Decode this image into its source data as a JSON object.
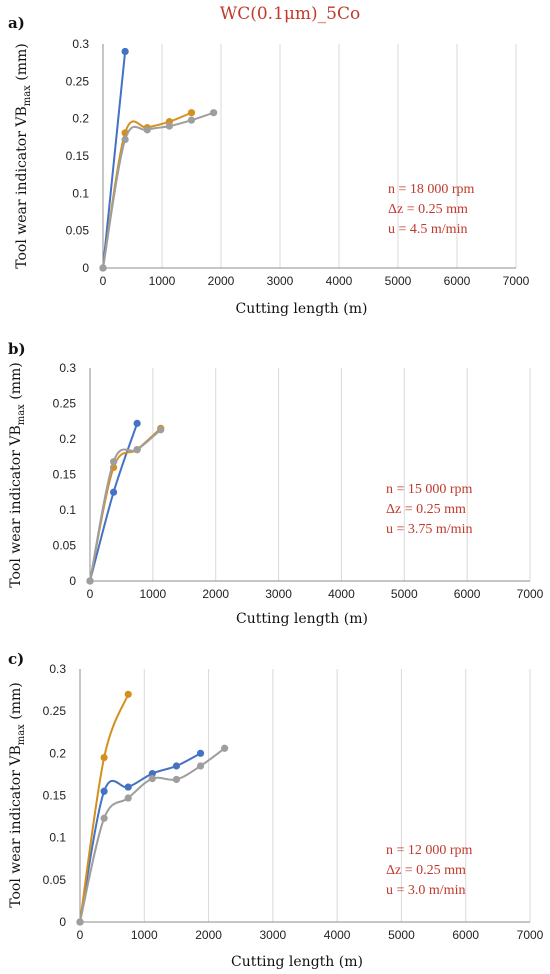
{
  "title": "WC(0.1μm)_5Co",
  "colors": {
    "blue": "#4472c4",
    "orange": "#d4901e",
    "gray": "#9e9e9e",
    "annotation": "#c0392b",
    "grid": "#d9d9d9",
    "axis": "#8c8c8c"
  },
  "chart_data": [
    {
      "type": "line",
      "panel": "a)",
      "xlabel": "Cutting length (m)",
      "ylabel": "Tool wear indicator VBmax (mm)",
      "ylabel_main": "Tool wear indicator VB",
      "ylabel_sub": "max",
      "ylabel_unit": "(mm)",
      "xlim": [
        0,
        7000
      ],
      "ylim": [
        0,
        0.3
      ],
      "xticks": [
        0,
        1000,
        2000,
        3000,
        4000,
        5000,
        6000,
        7000
      ],
      "yticks": [
        0,
        0.05,
        0.1,
        0.15,
        0.2,
        0.25,
        0.3
      ],
      "annotation": [
        "n = 18 000 rpm",
        "Δz = 0.25 mm",
        "u = 4.5 m/min"
      ],
      "series": [
        {
          "color": "blue",
          "x": [
            0,
            375
          ],
          "y": [
            0,
            0.29
          ]
        },
        {
          "color": "orange",
          "x": [
            0,
            375,
            750,
            1125,
            1500
          ],
          "y": [
            0,
            0.181,
            0.188,
            0.196,
            0.208
          ]
        },
        {
          "color": "gray",
          "x": [
            0,
            375,
            750,
            1125,
            1500,
            1875
          ],
          "y": [
            0,
            0.172,
            0.185,
            0.19,
            0.198,
            0.208
          ]
        }
      ]
    },
    {
      "type": "line",
      "panel": "b)",
      "xlabel": "Cutting length (m)",
      "ylabel": "Tool wear indicator VBmax (mm)",
      "ylabel_main": "Tool wear indicator VB",
      "ylabel_sub": "max",
      "ylabel_unit": "(mm)",
      "xlim": [
        0,
        7000
      ],
      "ylim": [
        0,
        0.3
      ],
      "xticks": [
        0,
        1000,
        2000,
        3000,
        4000,
        5000,
        6000,
        7000
      ],
      "yticks": [
        0,
        0.05,
        0.1,
        0.15,
        0.2,
        0.25,
        0.3
      ],
      "annotation": [
        "n = 15 000 rpm",
        "Δz = 0.25 mm",
        "u = 3.75 m/min"
      ],
      "series": [
        {
          "color": "blue",
          "x": [
            0,
            375,
            750
          ],
          "y": [
            0,
            0.125,
            0.222
          ]
        },
        {
          "color": "orange",
          "x": [
            0,
            375,
            750,
            1125
          ],
          "y": [
            0,
            0.16,
            0.185,
            0.215
          ]
        },
        {
          "color": "gray",
          "x": [
            0,
            375,
            750,
            1125
          ],
          "y": [
            0,
            0.168,
            0.185,
            0.213
          ]
        }
      ]
    },
    {
      "type": "line",
      "panel": "c)",
      "xlabel": "Cutting length (m)",
      "ylabel": "Tool wear indicator VBmax (mm)",
      "ylabel_main": "Tool wear indicator VB",
      "ylabel_sub": "max",
      "ylabel_unit": "(mm)",
      "xlim": [
        0,
        7000
      ],
      "ylim": [
        0,
        0.3
      ],
      "xticks": [
        0,
        1000,
        2000,
        3000,
        4000,
        5000,
        6000,
        7000
      ],
      "yticks": [
        0,
        0.05,
        0.1,
        0.15,
        0.2,
        0.25,
        0.3
      ],
      "annotation": [
        "n = 12 000 rpm",
        "Δz = 0.25 mm",
        "u = 3.0 m/min"
      ],
      "series": [
        {
          "color": "blue",
          "x": [
            0,
            375,
            750,
            1125,
            1500,
            1875
          ],
          "y": [
            0,
            0.155,
            0.16,
            0.176,
            0.185,
            0.2
          ]
        },
        {
          "color": "orange",
          "x": [
            0,
            375,
            750
          ],
          "y": [
            0,
            0.195,
            0.27
          ]
        },
        {
          "color": "gray",
          "x": [
            0,
            375,
            750,
            1125,
            1500,
            1875,
            2250
          ],
          "y": [
            0,
            0.123,
            0.147,
            0.17,
            0.169,
            0.185,
            0.206
          ]
        }
      ]
    }
  ]
}
